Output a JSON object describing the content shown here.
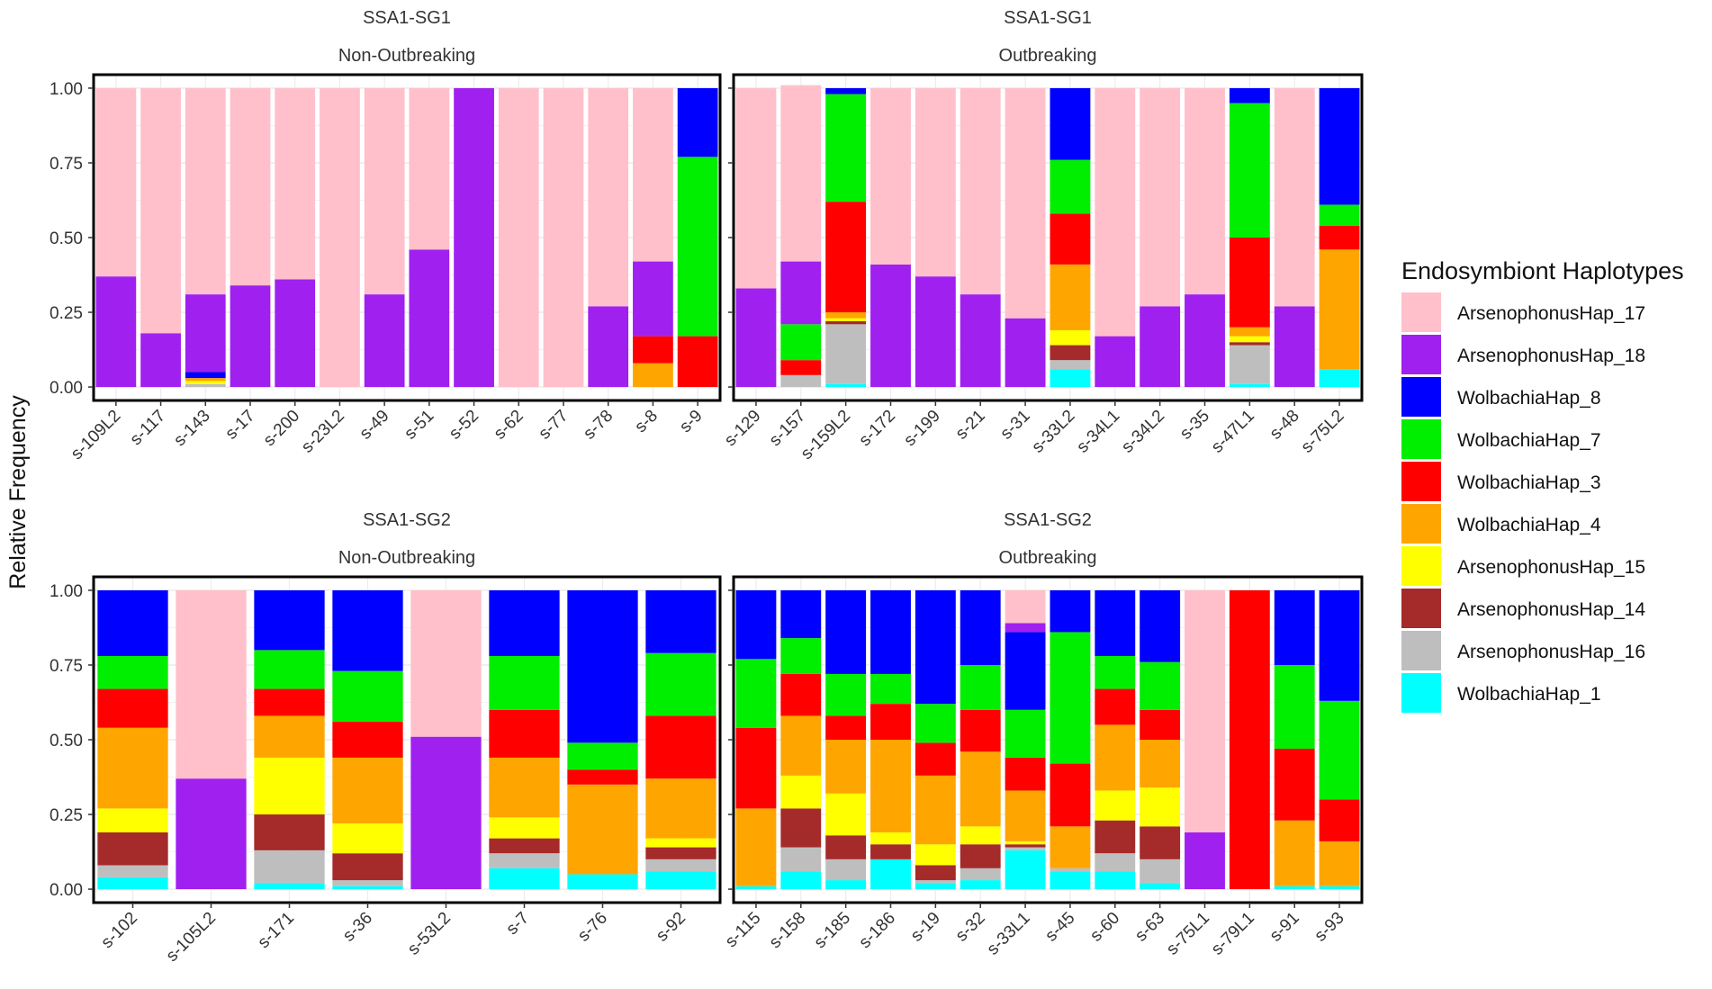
{
  "chart_data": {
    "type": "bar",
    "stacked": true,
    "ylabel": "Relative Frequency",
    "ylim": [
      0,
      1
    ],
    "y_ticks": [
      "0.00",
      "0.25",
      "0.50",
      "0.75",
      "1.00"
    ],
    "legend": {
      "title": "Endosymbiont Haplotypes",
      "placement": "right",
      "entries": [
        {
          "name": "ArsenophonusHap_17",
          "color": "#FFC0CB"
        },
        {
          "name": "ArsenophonusHap_18",
          "color": "#A020F0"
        },
        {
          "name": "WolbachiaHap_8",
          "color": "#0000FF"
        },
        {
          "name": "WolbachiaHap_7",
          "color": "#00EE00"
        },
        {
          "name": "WolbachiaHap_3",
          "color": "#FF0000"
        },
        {
          "name": "WolbachiaHap_4",
          "color": "#FFA500"
        },
        {
          "name": "ArsenophonusHap_15",
          "color": "#FFFF00"
        },
        {
          "name": "ArsenophonusHap_14",
          "color": "#A52A2A"
        },
        {
          "name": "ArsenophonusHap_16",
          "color": "#BEBEBE"
        },
        {
          "name": "WolbachiaHap_1",
          "color": "#00FFFF"
        }
      ]
    },
    "stack_order_bottom_to_top": [
      "WolbachiaHap_1",
      "ArsenophonusHap_16",
      "ArsenophonusHap_14",
      "ArsenophonusHap_15",
      "WolbachiaHap_4",
      "WolbachiaHap_3",
      "WolbachiaHap_7",
      "WolbachiaHap_8",
      "ArsenophonusHap_18",
      "ArsenophonusHap_17"
    ],
    "panels": [
      {
        "strip_group": "SSA1-SG1",
        "strip_status": "Non-Outbreaking",
        "categories": [
          "s-109L2",
          "s-117",
          "s-143",
          "s-17",
          "s-200",
          "s-23L2",
          "s-49",
          "s-51",
          "s-52",
          "s-62",
          "s-77",
          "s-78",
          "s-8",
          "s-9"
        ],
        "series": [
          {
            "name": "WolbachiaHap_1",
            "values": [
              0,
              0,
              0,
              0,
              0,
              0,
              0,
              0,
              0,
              0,
              0,
              0,
              0,
              0
            ]
          },
          {
            "name": "ArsenophonusHap_16",
            "values": [
              0,
              0,
              0.01,
              0,
              0,
              0,
              0,
              0,
              0,
              0,
              0,
              0,
              0,
              0
            ]
          },
          {
            "name": "ArsenophonusHap_14",
            "values": [
              0,
              0,
              0,
              0,
              0,
              0,
              0,
              0,
              0,
              0,
              0,
              0,
              0,
              0
            ]
          },
          {
            "name": "ArsenophonusHap_15",
            "values": [
              0,
              0,
              0.01,
              0,
              0,
              0,
              0,
              0,
              0,
              0,
              0,
              0,
              0,
              0
            ]
          },
          {
            "name": "WolbachiaHap_4",
            "values": [
              0,
              0,
              0.01,
              0,
              0,
              0,
              0,
              0,
              0,
              0,
              0,
              0,
              0.08,
              0
            ]
          },
          {
            "name": "WolbachiaHap_3",
            "values": [
              0,
              0,
              0,
              0,
              0,
              0,
              0,
              0,
              0,
              0,
              0,
              0,
              0.09,
              0.17
            ]
          },
          {
            "name": "WolbachiaHap_7",
            "values": [
              0,
              0,
              0,
              0,
              0,
              0,
              0,
              0,
              0,
              0,
              0,
              0,
              0,
              0.6
            ]
          },
          {
            "name": "WolbachiaHap_8",
            "values": [
              0,
              0,
              0.02,
              0,
              0,
              0,
              0,
              0,
              0,
              0,
              0,
              0,
              0,
              0.23
            ]
          },
          {
            "name": "ArsenophonusHap_18",
            "values": [
              0.37,
              0.18,
              0.26,
              0.34,
              0.36,
              0,
              0.31,
              0.46,
              1.0,
              0,
              0,
              0.27,
              0.25,
              0
            ]
          },
          {
            "name": "ArsenophonusHap_17",
            "values": [
              0.63,
              0.82,
              0.69,
              0.66,
              0.64,
              1.0,
              0.69,
              0.54,
              0,
              1.0,
              1.0,
              0.73,
              0.58,
              0
            ]
          }
        ]
      },
      {
        "strip_group": "SSA1-SG1",
        "strip_status": "Outbreaking",
        "categories": [
          "s-129",
          "s-157",
          "s-159L2",
          "s-172",
          "s-199",
          "s-21",
          "s-31",
          "s-33L2",
          "s-34L1",
          "s-34L2",
          "s-35",
          "s-47L1",
          "s-48",
          "s-75L2"
        ],
        "series": [
          {
            "name": "WolbachiaHap_1",
            "values": [
              0,
              0,
              0.01,
              0,
              0,
              0,
              0,
              0.06,
              0,
              0,
              0,
              0.01,
              0,
              0.06
            ]
          },
          {
            "name": "ArsenophonusHap_16",
            "values": [
              0,
              0.04,
              0.2,
              0,
              0,
              0,
              0,
              0.03,
              0,
              0,
              0,
              0.13,
              0,
              0
            ]
          },
          {
            "name": "ArsenophonusHap_14",
            "values": [
              0,
              0,
              0.01,
              0,
              0,
              0,
              0,
              0.05,
              0,
              0,
              0,
              0.01,
              0,
              0
            ]
          },
          {
            "name": "ArsenophonusHap_15",
            "values": [
              0,
              0,
              0.01,
              0,
              0,
              0,
              0,
              0.05,
              0,
              0,
              0,
              0.02,
              0,
              0
            ]
          },
          {
            "name": "WolbachiaHap_4",
            "values": [
              0,
              0,
              0.02,
              0,
              0,
              0,
              0,
              0.22,
              0,
              0,
              0,
              0.03,
              0,
              0.4
            ]
          },
          {
            "name": "WolbachiaHap_3",
            "values": [
              0,
              0.05,
              0.37,
              0,
              0,
              0,
              0,
              0.17,
              0,
              0,
              0,
              0.3,
              0,
              0.08
            ]
          },
          {
            "name": "WolbachiaHap_7",
            "values": [
              0,
              0.12,
              0.36,
              0,
              0,
              0,
              0,
              0.18,
              0,
              0,
              0,
              0.45,
              0,
              0.07
            ]
          },
          {
            "name": "WolbachiaHap_8",
            "values": [
              0,
              0,
              0.02,
              0,
              0,
              0,
              0,
              0.24,
              0,
              0,
              0,
              0.05,
              0,
              0.39
            ]
          },
          {
            "name": "ArsenophonusHap_18",
            "values": [
              0.33,
              0.21,
              0,
              0.41,
              0.37,
              0.31,
              0.23,
              0,
              0.17,
              0.27,
              0.31,
              0,
              0.27,
              0
            ]
          },
          {
            "name": "ArsenophonusHap_17",
            "values": [
              0.67,
              0.59,
              0,
              0.59,
              0.63,
              0.69,
              0.77,
              0,
              0.83,
              0.73,
              0.69,
              0,
              0.73,
              0
            ]
          }
        ]
      },
      {
        "strip_group": "SSA1-SG2",
        "strip_status": "Non-Outbreaking",
        "categories": [
          "s-102",
          "s-105L2",
          "s-171",
          "s-36",
          "s-53L2",
          "s-7",
          "s-76",
          "s-92"
        ],
        "series": [
          {
            "name": "WolbachiaHap_1",
            "values": [
              0.04,
              0,
              0.02,
              0.01,
              0,
              0.07,
              0.05,
              0.06
            ]
          },
          {
            "name": "ArsenophonusHap_16",
            "values": [
              0.04,
              0,
              0.11,
              0.02,
              0,
              0.05,
              0,
              0.04
            ]
          },
          {
            "name": "ArsenophonusHap_14",
            "values": [
              0.11,
              0,
              0.12,
              0.09,
              0,
              0.05,
              0,
              0.04
            ]
          },
          {
            "name": "ArsenophonusHap_15",
            "values": [
              0.08,
              0,
              0.19,
              0.1,
              0,
              0.07,
              0,
              0.03
            ]
          },
          {
            "name": "WolbachiaHap_4",
            "values": [
              0.27,
              0,
              0.14,
              0.22,
              0,
              0.2,
              0.3,
              0.2
            ]
          },
          {
            "name": "WolbachiaHap_3",
            "values": [
              0.13,
              0,
              0.09,
              0.12,
              0,
              0.16,
              0.05,
              0.21
            ]
          },
          {
            "name": "WolbachiaHap_7",
            "values": [
              0.11,
              0,
              0.13,
              0.17,
              0,
              0.18,
              0.09,
              0.21
            ]
          },
          {
            "name": "WolbachiaHap_8",
            "values": [
              0.22,
              0,
              0.2,
              0.27,
              0,
              0.22,
              0.51,
              0.21
            ]
          },
          {
            "name": "ArsenophonusHap_18",
            "values": [
              0,
              0.37,
              0,
              0,
              0.51,
              0,
              0,
              0
            ]
          },
          {
            "name": "ArsenophonusHap_17",
            "values": [
              0,
              0.63,
              0,
              0,
              0.49,
              0,
              0,
              0
            ]
          }
        ]
      },
      {
        "strip_group": "SSA1-SG2",
        "strip_status": "Outbreaking",
        "categories": [
          "s-115",
          "s-158",
          "s-185",
          "s-186",
          "s-19",
          "s-32",
          "s-33L1",
          "s-45",
          "s-60",
          "s-63",
          "s-75L1",
          "s-79L1",
          "s-91",
          "s-93"
        ],
        "series": [
          {
            "name": "WolbachiaHap_1",
            "values": [
              0.01,
              0.06,
              0.03,
              0.1,
              0.02,
              0.03,
              0.13,
              0.06,
              0.06,
              0.02,
              0,
              0,
              0.01,
              0.01
            ]
          },
          {
            "name": "ArsenophonusHap_16",
            "values": [
              0,
              0.08,
              0.07,
              0,
              0.01,
              0.04,
              0.01,
              0.01,
              0.06,
              0.08,
              0,
              0,
              0,
              0
            ]
          },
          {
            "name": "ArsenophonusHap_14",
            "values": [
              0,
              0.13,
              0.08,
              0.05,
              0.05,
              0.08,
              0.01,
              0,
              0.11,
              0.11,
              0,
              0,
              0,
              0
            ]
          },
          {
            "name": "ArsenophonusHap_15",
            "values": [
              0,
              0.11,
              0.14,
              0.04,
              0.07,
              0.06,
              0.01,
              0,
              0.1,
              0.13,
              0,
              0,
              0,
              0
            ]
          },
          {
            "name": "WolbachiaHap_4",
            "values": [
              0.26,
              0.2,
              0.18,
              0.31,
              0.23,
              0.25,
              0.17,
              0.14,
              0.22,
              0.16,
              0,
              0,
              0.22,
              0.15
            ]
          },
          {
            "name": "WolbachiaHap_3",
            "values": [
              0.27,
              0.14,
              0.08,
              0.12,
              0.11,
              0.14,
              0.11,
              0.21,
              0.12,
              0.1,
              0,
              1.0,
              0.24,
              0.14
            ]
          },
          {
            "name": "WolbachiaHap_7",
            "values": [
              0.23,
              0.12,
              0.14,
              0.1,
              0.13,
              0.15,
              0.16,
              0.44,
              0.11,
              0.16,
              0,
              0,
              0.28,
              0.33
            ]
          },
          {
            "name": "WolbachiaHap_8",
            "values": [
              0.23,
              0.16,
              0.28,
              0.28,
              0.38,
              0.25,
              0.26,
              0.14,
              0.22,
              0.24,
              0,
              0,
              0.25,
              0.37
            ]
          },
          {
            "name": "ArsenophonusHap_18",
            "values": [
              0,
              0,
              0,
              0,
              0,
              0,
              0.03,
              0,
              0,
              0,
              0.19,
              0,
              0,
              0
            ]
          },
          {
            "name": "ArsenophonusHap_17",
            "values": [
              0,
              0,
              0,
              0,
              0,
              0,
              0.11,
              0,
              0,
              0,
              0.81,
              0,
              0,
              0
            ]
          }
        ]
      }
    ]
  }
}
